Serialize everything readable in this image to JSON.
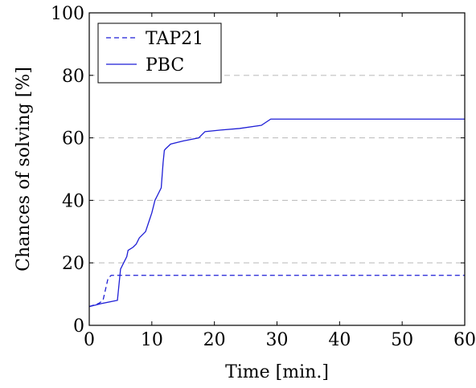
{
  "chart_data": {
    "type": "line",
    "title": "",
    "xlabel": "Time [min.]",
    "ylabel": "Chances of solving [%]",
    "xlim": [
      0,
      60
    ],
    "ylim": [
      0,
      100
    ],
    "xticks": [
      0,
      10,
      20,
      30,
      40,
      50,
      60
    ],
    "yticks": [
      0,
      20,
      40,
      60,
      80,
      100
    ],
    "grid": "horizontal dashed",
    "legend_position": "top-left",
    "series": [
      {
        "name": "TAP21",
        "style": "dashed",
        "color": "#1f1fd6",
        "x": [
          0,
          1.5,
          2.2,
          3.0,
          3.5,
          60
        ],
        "y": [
          6,
          7,
          8,
          15,
          16,
          16
        ]
      },
      {
        "name": "PBC",
        "style": "solid",
        "color": "#1f1fd6",
        "x": [
          0,
          1,
          2,
          4.5,
          5.0,
          5.5,
          6.0,
          6.2,
          7.0,
          7.5,
          8.0,
          9.0,
          9.5,
          10.0,
          10.5,
          11.0,
          11.5,
          11.8,
          12.0,
          12.2,
          13.0,
          15.0,
          17.5,
          18.0,
          18.5,
          21.0,
          24.0,
          27.5,
          29.0,
          30.0,
          60.0
        ],
        "y": [
          6,
          6.5,
          7,
          8,
          18,
          20,
          22,
          24,
          25,
          26,
          28,
          30,
          33,
          36,
          40,
          42,
          44,
          52,
          56,
          56.5,
          58,
          59,
          60,
          61,
          62,
          62.5,
          63,
          64,
          66,
          66,
          66
        ]
      }
    ]
  }
}
